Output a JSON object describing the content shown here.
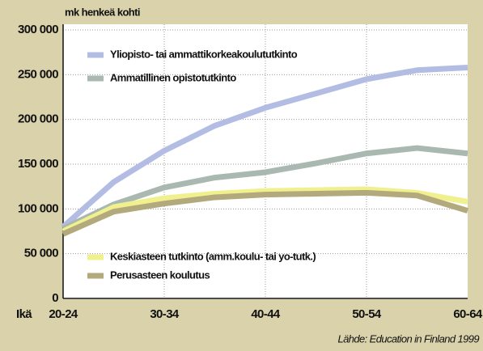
{
  "chart_data": {
    "type": "line",
    "y_label": "mk henkeä kohti",
    "x_label": "Ikä",
    "source": "Lähde: Education in Finland 1999",
    "categories": [
      "20-24",
      null,
      "30-34",
      null,
      "40-44",
      null,
      "50-54",
      null,
      "60-64"
    ],
    "series": [
      {
        "name": "Yliopisto- tai ammattikorkeakoulututkinto",
        "color": "#b3bde3",
        "values": [
          80000,
          130000,
          165000,
          193000,
          213000,
          229000,
          245000,
          255000,
          258000
        ]
      },
      {
        "name": "Ammatillinen opistotutkinto",
        "color": "#a9b9b1",
        "values": [
          78000,
          105000,
          124000,
          135000,
          141000,
          151000,
          162000,
          168000,
          162000
        ]
      },
      {
        "name": "Keskiasteen tutkinto  (amm.koulu- tai yo-tutk.)",
        "color": "#f1f08e",
        "values": [
          75000,
          102000,
          112000,
          117000,
          120000,
          121000,
          122000,
          118000,
          108000
        ]
      },
      {
        "name": "Perusasteen koulutus",
        "color": "#b2aa7c",
        "values": [
          72000,
          97000,
          106000,
          113000,
          116000,
          117000,
          118000,
          115000,
          98000
        ]
      }
    ],
    "ylim": [
      0,
      300000
    ],
    "yticks": [
      0,
      {
        "value": 50000,
        "label": "50 000"
      },
      {
        "value": 100000,
        "label": "100 000"
      },
      {
        "value": 150000,
        "label": "150 000"
      },
      {
        "value": 200000,
        "label": "200 000"
      },
      {
        "value": 250000,
        "label": "250 000"
      },
      {
        "value": 300000,
        "label": "300 000"
      }
    ],
    "grid": true
  }
}
